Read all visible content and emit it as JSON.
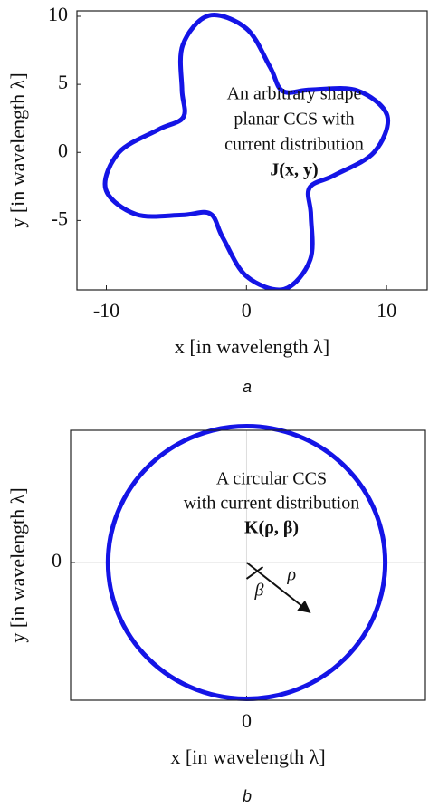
{
  "chart_data": [
    {
      "type": "line",
      "panel_label": "a",
      "xlabel": "x [in wavelength λ]",
      "ylabel": "y [in wavelength λ]",
      "annotation": [
        "An arbitrary shape",
        "planar CCS with",
        "current distribution",
        "J(x, y)"
      ],
      "closed": true,
      "color": "#1414e6",
      "x": [
        9.1,
        10.05,
        7.88,
        4.6,
        2.6,
        1.68,
        0,
        -2.69,
        -4.55,
        -4.6,
        -4.5,
        -6.28,
        -9.1,
        -10.05,
        -7.88,
        -4.6,
        -2.6,
        -1.68,
        0,
        2.69,
        4.55,
        4.6,
        4.5,
        6.28
      ],
      "y": [
        0,
        2.69,
        4.55,
        4.6,
        4.5,
        6.28,
        9.1,
        10.05,
        7.88,
        4.6,
        2.6,
        1.68,
        0,
        -2.69,
        -4.55,
        -4.6,
        -4.5,
        -6.28,
        -9.1,
        -10.05,
        -7.88,
        -4.6,
        -2.6,
        -1.68
      ],
      "xlim": [
        -12.1,
        12.9
      ],
      "ylim": [
        -10.1,
        10.4
      ],
      "xticks": [
        -10,
        0,
        10
      ],
      "yticks": [
        -5,
        0,
        5,
        10
      ],
      "grid": false
    },
    {
      "type": "circle",
      "panel_label": "b",
      "xlabel": "x [in wavelength λ]",
      "ylabel": "y [in wavelength λ]",
      "annotation": [
        "A circular CCS",
        "with current distribution",
        "K(ρ, β)"
      ],
      "arrow_labels": [
        "ρ",
        "β"
      ],
      "color": "#1414e6",
      "center": [
        0,
        0
      ],
      "radius": 1,
      "xlim": [
        -1.27,
        1.29
      ],
      "ylim": [
        -1.01,
        0.97
      ],
      "xticks": [
        0
      ],
      "yticks": [
        0
      ],
      "grid": true
    }
  ]
}
